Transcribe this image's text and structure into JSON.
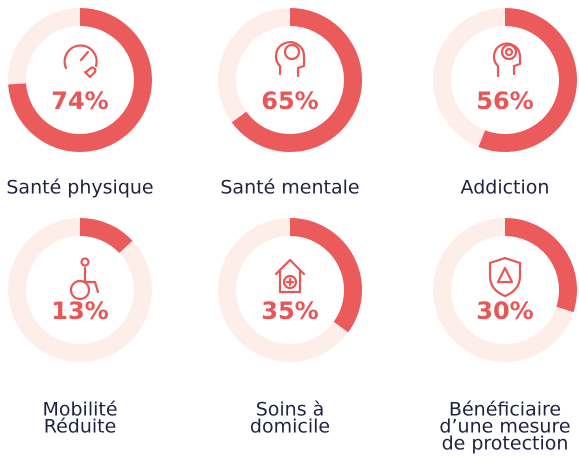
{
  "chart_data": [
    {
      "type": "donut",
      "title": [
        "Santé physique"
      ],
      "values": [
        74
      ],
      "value_labels": [
        "74%"
      ],
      "ylim": [
        0,
        100
      ],
      "color": "#eb5b5b",
      "track_color": "#fdeeea"
    },
    {
      "type": "donut",
      "title": [
        "Santé mentale"
      ],
      "values": [
        65
      ],
      "value_labels": [
        "65%"
      ],
      "ylim": [
        0,
        100
      ],
      "color": "#eb5b5b",
      "track_color": "#fdeeea"
    },
    {
      "type": "donut",
      "title": [
        "Addiction"
      ],
      "values": [
        56
      ],
      "value_labels": [
        "56%"
      ],
      "ylim": [
        0,
        100
      ],
      "color": "#eb5b5b",
      "track_color": "#fdeeea"
    },
    {
      "type": "donut",
      "title": [
        "Mobilité",
        "Réduite"
      ],
      "values": [
        13
      ],
      "value_labels": [
        "13%"
      ],
      "ylim": [
        0,
        100
      ],
      "color": "#eb5b5b",
      "track_color": "#fdeeea"
    },
    {
      "type": "donut",
      "title": [
        "Soins à",
        "domicile"
      ],
      "values": [
        35
      ],
      "value_labels": [
        "35%"
      ],
      "ylim": [
        0,
        100
      ],
      "color": "#eb5b5b",
      "track_color": "#fdeeea"
    },
    {
      "type": "donut",
      "title": [
        "Bénéficiaire",
        "d’une mesure",
        "de protection"
      ],
      "values": [
        30
      ],
      "value_labels": [
        "30%"
      ],
      "ylim": [
        0,
        100
      ],
      "color": "#eb5b5b",
      "track_color": "#fdeeea"
    }
  ]
}
